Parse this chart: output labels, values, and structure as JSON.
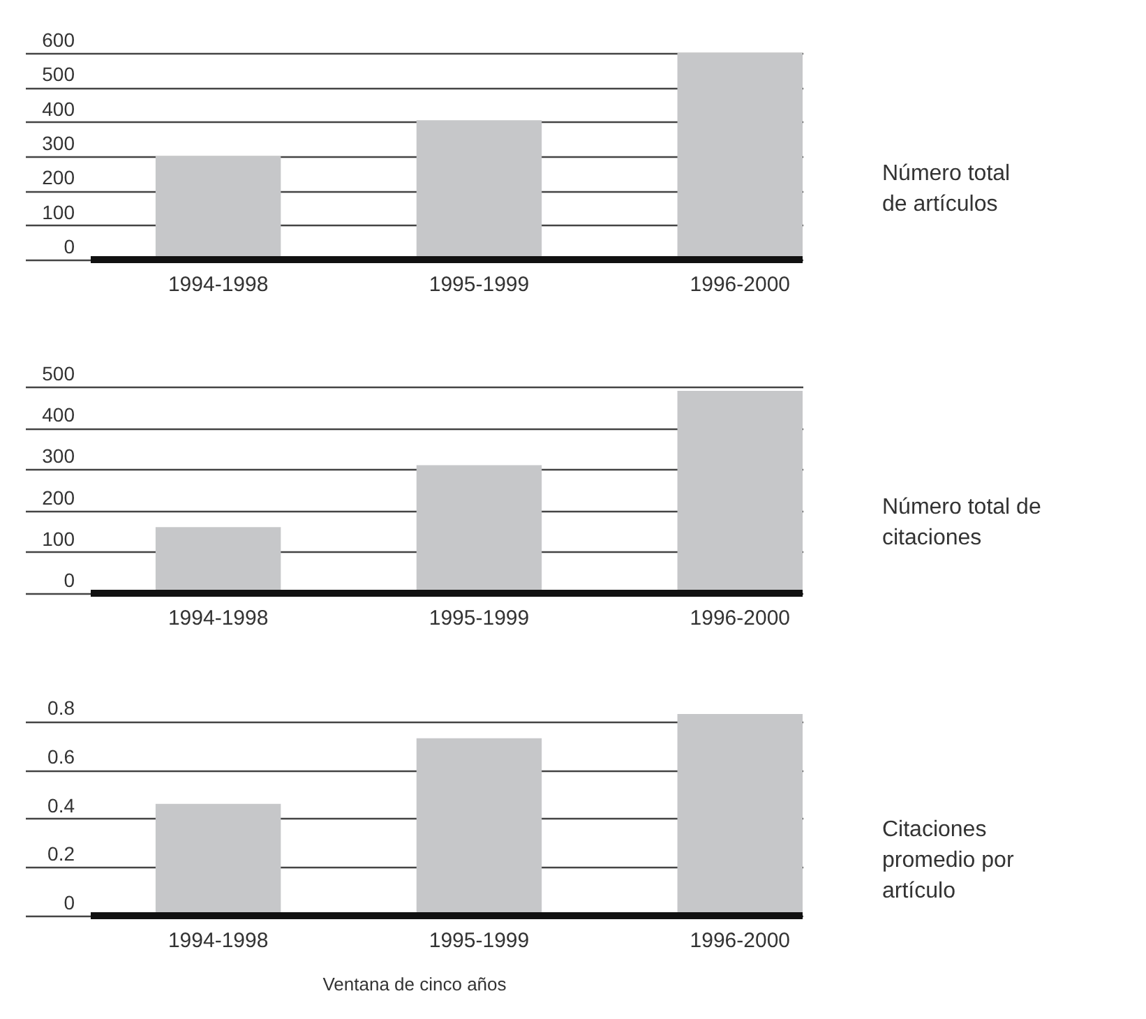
{
  "chart_data": [
    {
      "type": "bar",
      "ylabel": "Número total de artículos",
      "categories": [
        "1994-1998",
        "1995-1999",
        "1996-2000"
      ],
      "values": [
        300,
        405,
        600
      ],
      "color": "#c6c7c9",
      "ylim": [
        0,
        600
      ],
      "yticks": [
        0,
        100,
        200,
        300,
        400,
        500,
        600
      ],
      "grid": "y"
    },
    {
      "type": "bar",
      "ylabel": "Número total de citaciones",
      "categories": [
        "1994-1998",
        "1995-1999",
        "1996-2000"
      ],
      "values": [
        160,
        310,
        490
      ],
      "color": "#c6c7c9",
      "ylim": [
        0,
        500
      ],
      "yticks": [
        0,
        100,
        200,
        300,
        400,
        500
      ],
      "grid": "y"
    },
    {
      "type": "bar",
      "ylabel": "Citaciones promedio por artículo",
      "xlabel": "Ventana de cinco años",
      "categories": [
        "1994-1998",
        "1995-1999",
        "1996-2000"
      ],
      "values": [
        0.46,
        0.73,
        0.83
      ],
      "color": "#c6c7c9",
      "ylim": [
        0,
        0.85
      ],
      "yticks": [
        0,
        0.2,
        0.4,
        0.6,
        0.8
      ],
      "grid": "y"
    }
  ]
}
